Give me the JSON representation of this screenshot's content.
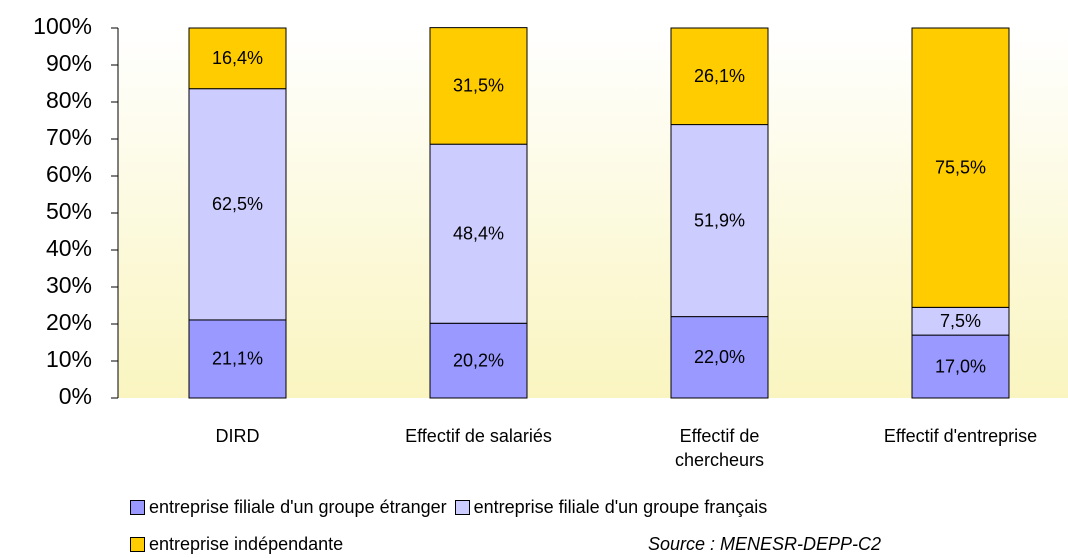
{
  "chart_data": {
    "type": "stacked_bar",
    "categories": [
      "DIRD",
      "Effectif de salariés",
      "Effectif de chercheurs",
      "Effectif d'entreprise"
    ],
    "series": [
      {
        "name": "entreprise filiale d'un groupe étranger",
        "color": "#9999ff",
        "values": [
          21.1,
          20.2,
          22.0,
          17.0
        ],
        "value_labels": [
          "21,1%",
          "20,2%",
          "22,0%",
          "17,0%"
        ]
      },
      {
        "name": "entreprise filiale d'un groupe français",
        "color": "#ccccff",
        "values": [
          62.5,
          48.4,
          51.9,
          7.5
        ],
        "value_labels": [
          "62,5%",
          "48,4%",
          "51,9%",
          "7,5%"
        ]
      },
      {
        "name": "entreprise indépendante",
        "color": "#ffcc00",
        "values": [
          16.4,
          31.5,
          26.1,
          75.5
        ],
        "value_labels": [
          "16,4%",
          "31,5%",
          "26,1%",
          "75,5%"
        ]
      }
    ],
    "ylim": [
      0,
      100
    ],
    "yticks": [
      {
        "value": 0,
        "label": "0%"
      },
      {
        "value": 10,
        "label": "10%"
      },
      {
        "value": 20,
        "label": "20%"
      },
      {
        "value": 30,
        "label": "30%"
      },
      {
        "value": 40,
        "label": "40%"
      },
      {
        "value": 50,
        "label": "50%"
      },
      {
        "value": 60,
        "label": "60%"
      },
      {
        "value": 70,
        "label": "70%"
      },
      {
        "value": 80,
        "label": "80%"
      },
      {
        "value": 90,
        "label": "90%"
      },
      {
        "value": 100,
        "label": "100%"
      }
    ],
    "grid": false,
    "source": "Source : MENESR-DEPP-C2"
  }
}
